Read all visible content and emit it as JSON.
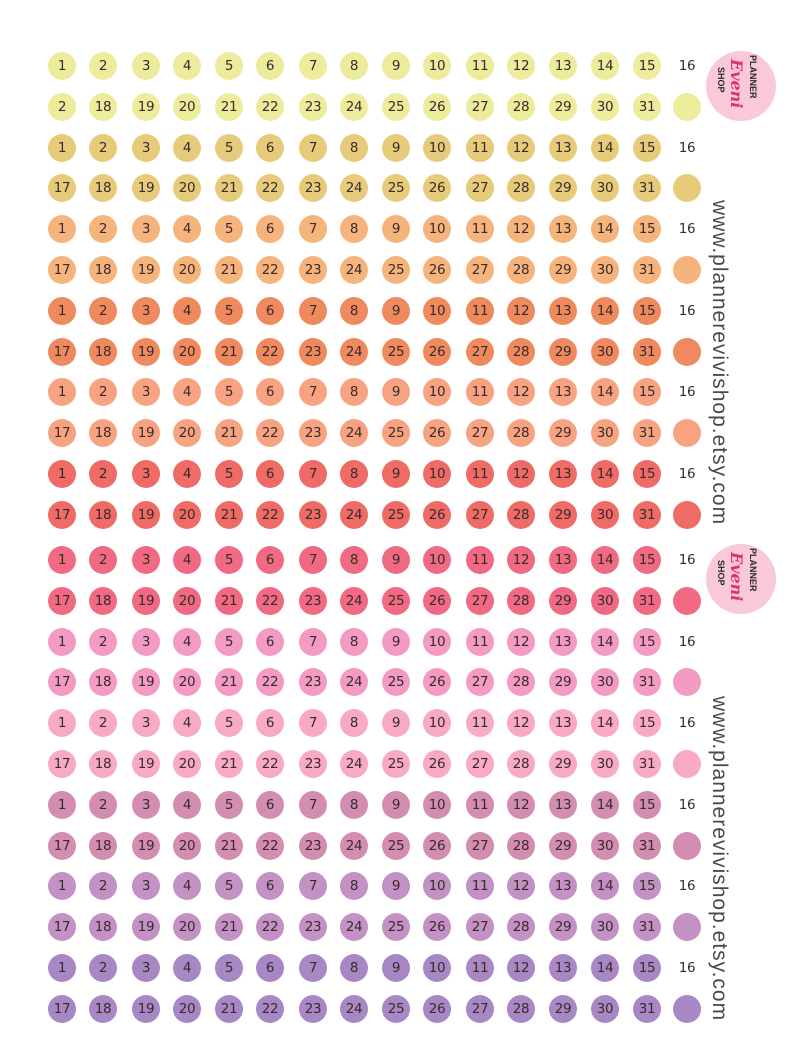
{
  "sheet": {
    "url": "www.plannerevivishop.etsy.com",
    "logo": {
      "line1": "PLANNER",
      "script": "Eveni",
      "line2": "SHOP"
    },
    "odd_row_numbers": [
      "1",
      "2",
      "3",
      "4",
      "5",
      "6",
      "7",
      "8",
      "9",
      "10",
      "11",
      "12",
      "13",
      "14",
      "15",
      "16"
    ],
    "even_row_numbers": [
      "17",
      "18",
      "19",
      "20",
      "21",
      "22",
      "23",
      "24",
      "25",
      "26",
      "27",
      "28",
      "29",
      "30",
      "31"
    ],
    "first_row_even_override": [
      "2",
      "18",
      "19",
      "20",
      "21",
      "22",
      "23",
      "24",
      "25",
      "26",
      "27",
      "28",
      "29",
      "30",
      "31"
    ],
    "row_colors": [
      "#ecec9c",
      "#ecec9c",
      "#e6cc7a",
      "#e6cc7a",
      "#f6b47d",
      "#f6b47d",
      "#ef8a5e",
      "#ef8a5e",
      "#f7a382",
      "#f7a382",
      "#ee6b66",
      "#ee6b66",
      "#f06a84",
      "#f06a84",
      "#f49bc4",
      "#f49bc4",
      "#f8a9c4",
      "#f8a9c4",
      "#d28db0",
      "#d28db0",
      "#c391c4",
      "#c391c4",
      "#a887c5",
      "#a887c5"
    ]
  }
}
